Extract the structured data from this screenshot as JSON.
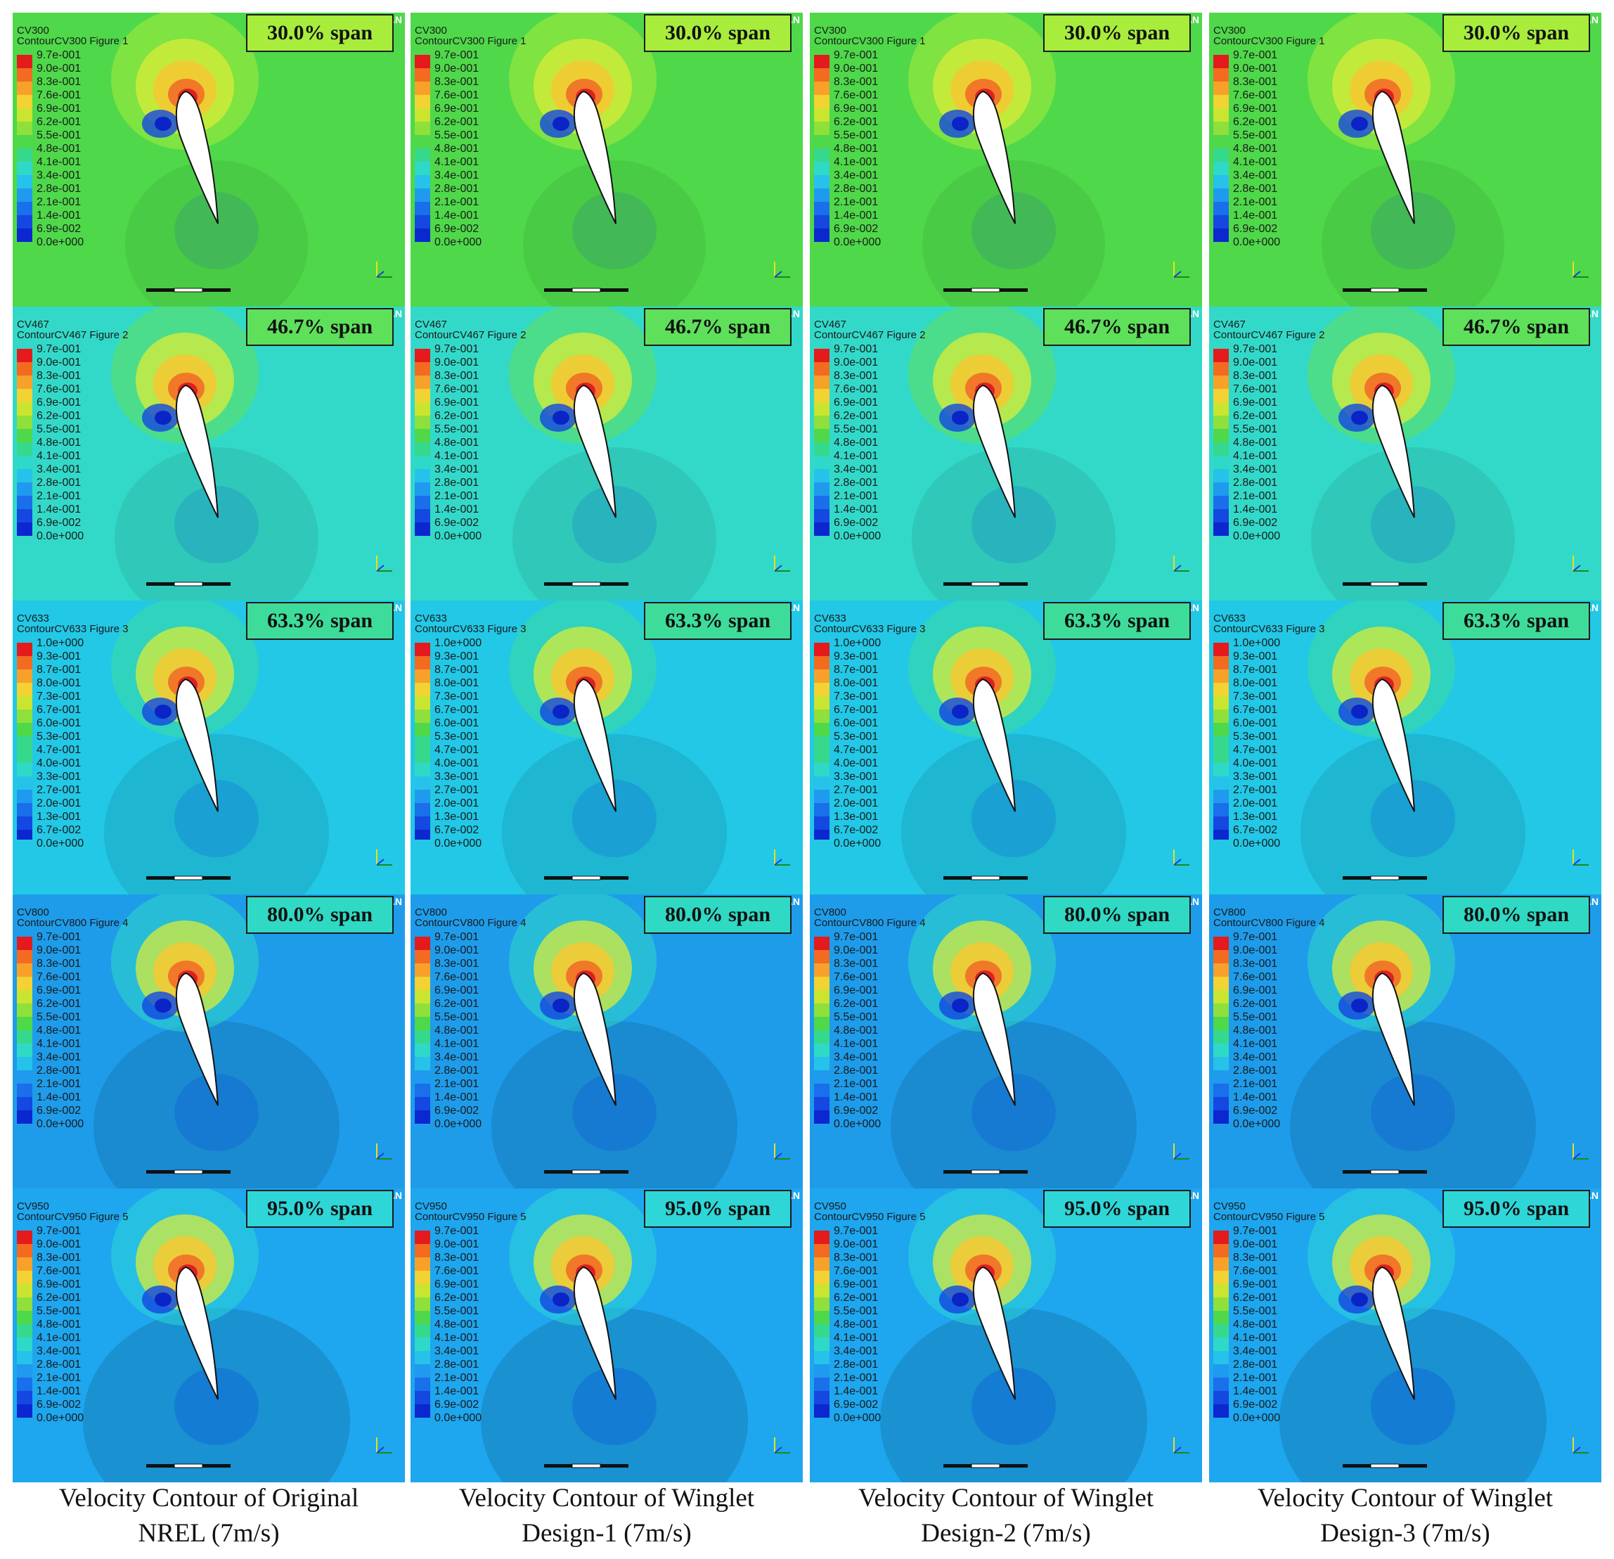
{
  "figure": {
    "ansys_mark": "AN",
    "captions": [
      "Velocity Contour of Original\nNREL (7m/s)",
      "Velocity Contour of Winglet\nDesign-1 (7m/s)",
      "Velocity Contour of Winglet\nDesign-2 (7m/s)",
      "Velocity Contour of Winglet\nDesign-3 (7m/s)"
    ],
    "rows": [
      {
        "title": "CV300",
        "subtitle": "ContourCV300 Figure 1",
        "span": "30.0% span",
        "ticks": [
          "9.7e-001",
          "9.0e-001",
          "8.3e-001",
          "7.6e-001",
          "6.9e-001",
          "6.2e-001",
          "5.5e-001",
          "4.8e-001",
          "4.1e-001",
          "3.4e-001",
          "2.8e-001",
          "2.1e-001",
          "1.4e-001",
          "6.9e-002",
          "0.0e+000"
        ],
        "bg_color": "#4fd84a",
        "halo_color": "#a8ec3c"
      },
      {
        "title": "CV467",
        "subtitle": "ContourCV467 Figure 2",
        "span": "46.7% span",
        "ticks": [
          "9.7e-001",
          "9.0e-001",
          "8.3e-001",
          "7.6e-001",
          "6.9e-001",
          "6.2e-001",
          "5.5e-001",
          "4.8e-001",
          "4.1e-001",
          "3.4e-001",
          "2.8e-001",
          "2.1e-001",
          "1.4e-001",
          "6.9e-002",
          "0.0e+000"
        ],
        "bg_color": "#33d9c8",
        "halo_color": "#5ee05a"
      },
      {
        "title": "CV633",
        "subtitle": "ContourCV633 Figure 3",
        "span": "63.3% span",
        "ticks": [
          "1.0e+000",
          "9.3e-001",
          "8.7e-001",
          "8.0e-001",
          "7.3e-001",
          "6.7e-001",
          "6.0e-001",
          "5.3e-001",
          "4.7e-001",
          "4.0e-001",
          "3.3e-001",
          "2.7e-001",
          "2.0e-001",
          "1.3e-001",
          "6.7e-002",
          "0.0e+000"
        ],
        "bg_color": "#22c8e6",
        "halo_color": "#3ddc9a"
      },
      {
        "title": "CV800",
        "subtitle": "ContourCV800 Figure 4",
        "span": "80.0% span",
        "ticks": [
          "9.7e-001",
          "9.0e-001",
          "8.3e-001",
          "7.6e-001",
          "6.9e-001",
          "6.2e-001",
          "5.5e-001",
          "4.8e-001",
          "4.1e-001",
          "3.4e-001",
          "2.8e-001",
          "2.1e-001",
          "1.4e-001",
          "6.9e-002",
          "0.0e+000"
        ],
        "bg_color": "#1e9cea",
        "halo_color": "#2fd9c4"
      },
      {
        "title": "CV950",
        "subtitle": "ContourCV950 Figure 5",
        "span": "95.0% span",
        "ticks": [
          "9.7e-001",
          "9.0e-001",
          "8.3e-001",
          "7.6e-001",
          "6.9e-001",
          "6.2e-001",
          "5.5e-001",
          "4.8e-001",
          "4.1e-001",
          "3.4e-001",
          "2.8e-001",
          "2.1e-001",
          "1.4e-001",
          "6.9e-002",
          "0.0e+000"
        ],
        "bg_color": "#1ea6ee",
        "halo_color": "#2ed6d8"
      }
    ]
  }
}
